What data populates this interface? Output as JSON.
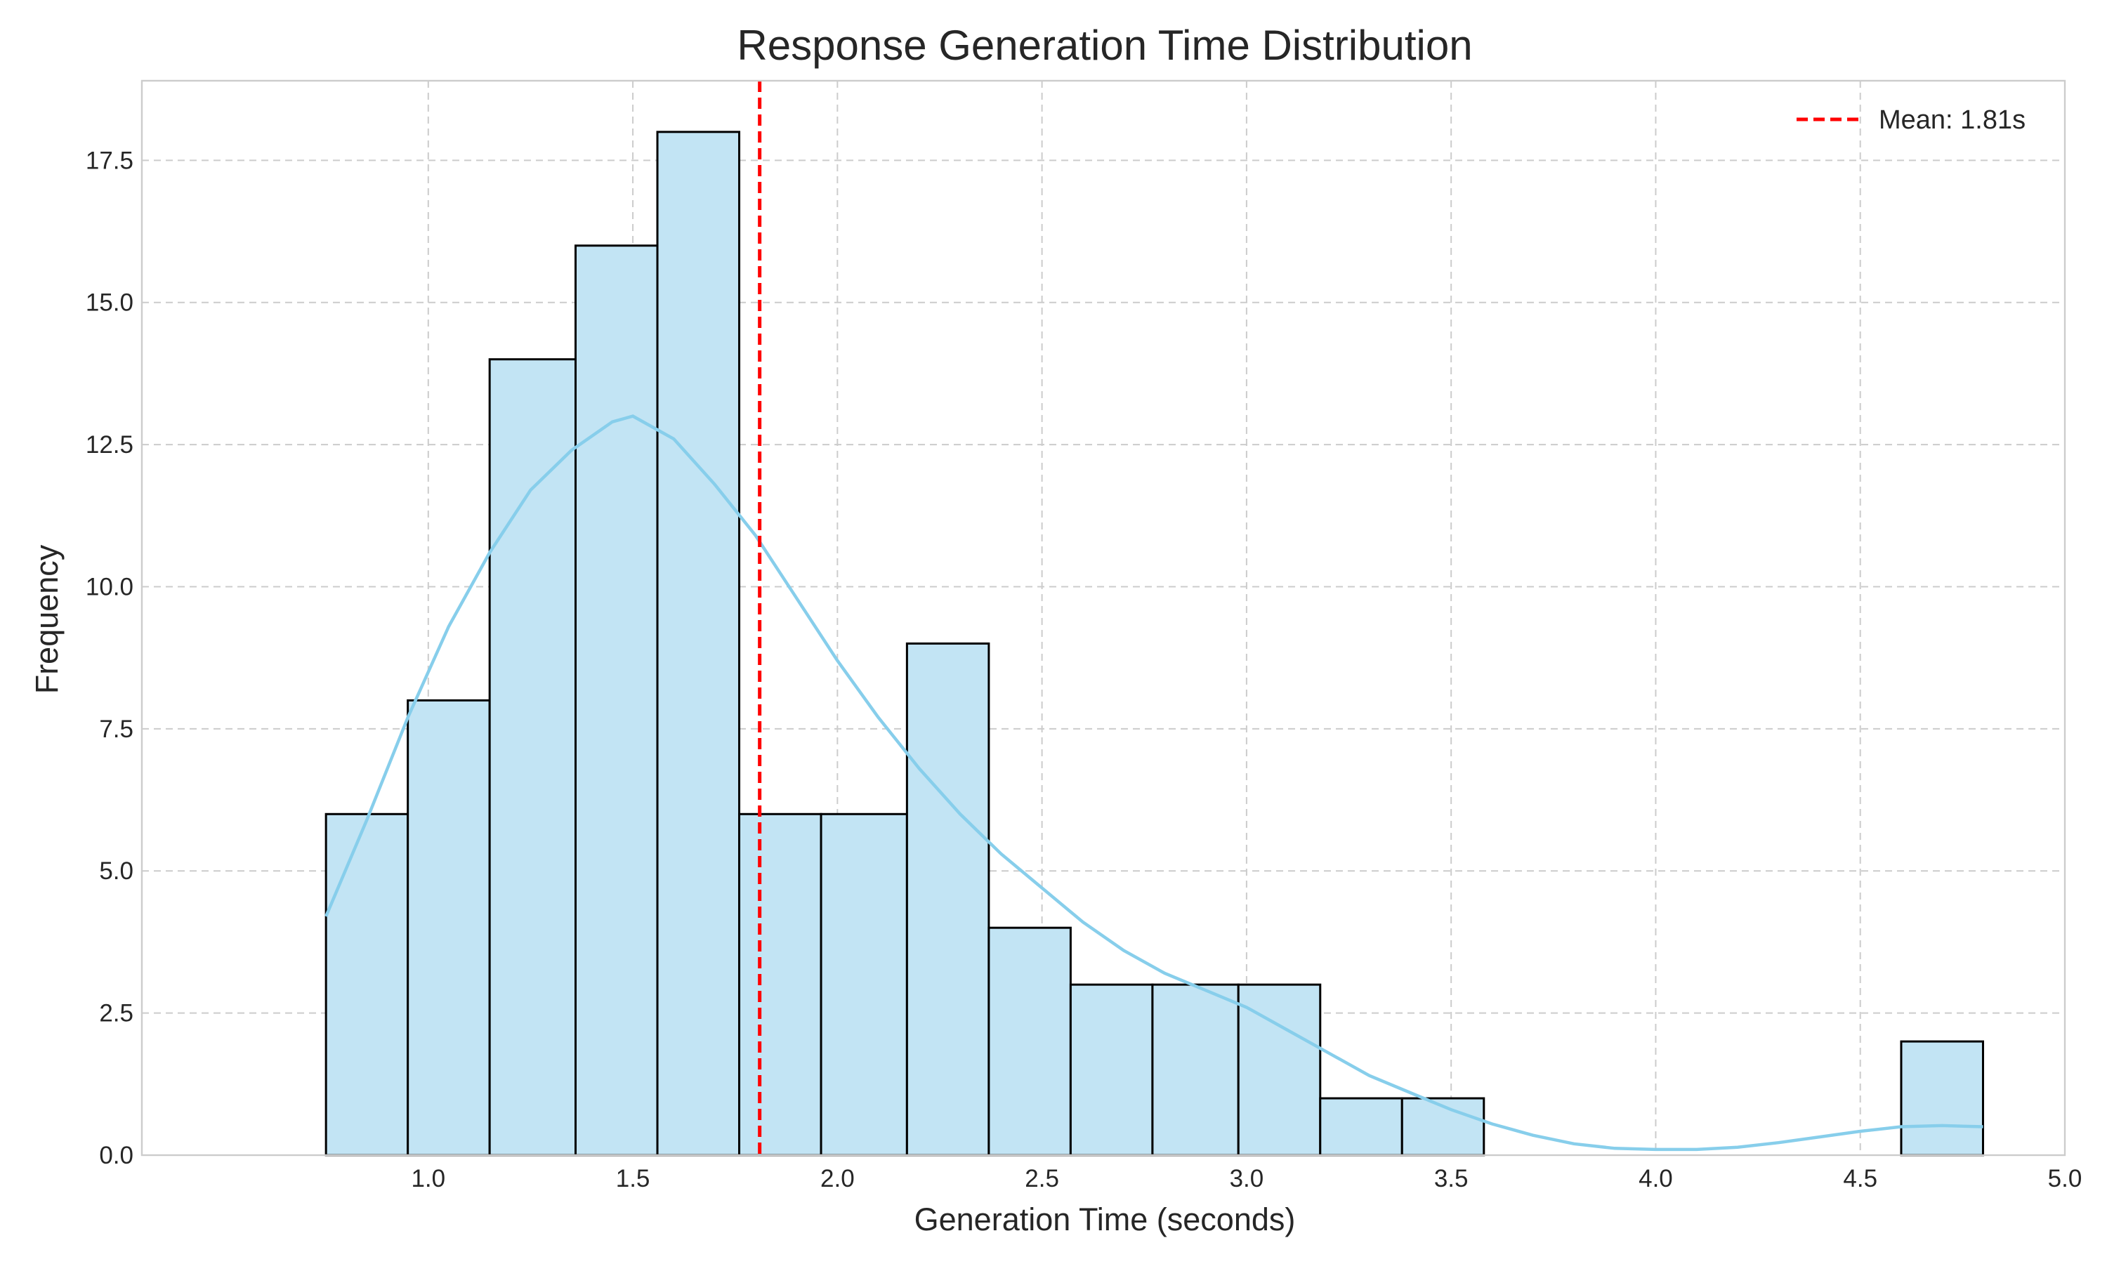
{
  "chart_data": {
    "type": "histogram",
    "title": "Response Generation Time Distribution",
    "xlabel": "Generation Time (seconds)",
    "ylabel": "Frequency",
    "xlim": [
      0.3,
      5.0
    ],
    "ylim": [
      0,
      18.9
    ],
    "xticks": [
      1.0,
      1.5,
      2.0,
      2.5,
      3.0,
      3.5,
      4.0,
      4.5,
      5.0
    ],
    "xtick_labels": [
      "1.0",
      "1.5",
      "2.0",
      "2.5",
      "3.0",
      "3.5",
      "4.0",
      "4.5",
      "5.0"
    ],
    "yticks": [
      0,
      2.5,
      5,
      7.5,
      10,
      12.5,
      15,
      17.5
    ],
    "ytick_labels": [
      "0.0",
      "2.5",
      "5.0",
      "7.5",
      "10.0",
      "12.5",
      "15.0",
      "17.5"
    ],
    "bins": [
      {
        "start": 0.75,
        "end": 0.95,
        "count": 6
      },
      {
        "start": 0.95,
        "end": 1.15,
        "count": 8
      },
      {
        "start": 1.15,
        "end": 1.36,
        "count": 14
      },
      {
        "start": 1.36,
        "end": 1.56,
        "count": 16
      },
      {
        "start": 1.56,
        "end": 1.76,
        "count": 18
      },
      {
        "start": 1.76,
        "end": 1.96,
        "count": 6
      },
      {
        "start": 1.96,
        "end": 2.17,
        "count": 6
      },
      {
        "start": 2.17,
        "end": 2.37,
        "count": 9
      },
      {
        "start": 2.37,
        "end": 2.57,
        "count": 4
      },
      {
        "start": 2.57,
        "end": 2.77,
        "count": 3
      },
      {
        "start": 2.77,
        "end": 2.98,
        "count": 3
      },
      {
        "start": 2.98,
        "end": 3.18,
        "count": 3
      },
      {
        "start": 3.18,
        "end": 3.38,
        "count": 1
      },
      {
        "start": 3.38,
        "end": 3.58,
        "count": 1
      },
      {
        "start": 4.6,
        "end": 4.8,
        "count": 2
      }
    ],
    "kde_curve": {
      "x": [
        0.75,
        0.85,
        0.95,
        1.05,
        1.15,
        1.25,
        1.35,
        1.45,
        1.5,
        1.6,
        1.7,
        1.8,
        1.9,
        2.0,
        2.1,
        2.2,
        2.3,
        2.4,
        2.5,
        2.6,
        2.7,
        2.8,
        2.9,
        3.0,
        3.1,
        3.2,
        3.3,
        3.4,
        3.5,
        3.6,
        3.7,
        3.8,
        3.9,
        4.0,
        4.1,
        4.2,
        4.3,
        4.4,
        4.5,
        4.6,
        4.7,
        4.8
      ],
      "y": [
        4.2,
        5.9,
        7.7,
        9.3,
        10.6,
        11.7,
        12.4,
        12.9,
        13.0,
        12.6,
        11.8,
        10.9,
        9.8,
        8.7,
        7.7,
        6.8,
        6.0,
        5.3,
        4.7,
        4.1,
        3.6,
        3.2,
        2.9,
        2.6,
        2.2,
        1.8,
        1.4,
        1.1,
        0.8,
        0.55,
        0.35,
        0.2,
        0.12,
        0.1,
        0.1,
        0.14,
        0.22,
        0.32,
        0.42,
        0.5,
        0.52,
        0.5
      ]
    },
    "mean_line": {
      "x": 1.81,
      "label": "Mean: 1.81s",
      "color": "#ff0000"
    },
    "bar_color": "#c2e4f4",
    "kde_color": "#87ceeb",
    "grid": true,
    "legend_position": "top-right"
  }
}
